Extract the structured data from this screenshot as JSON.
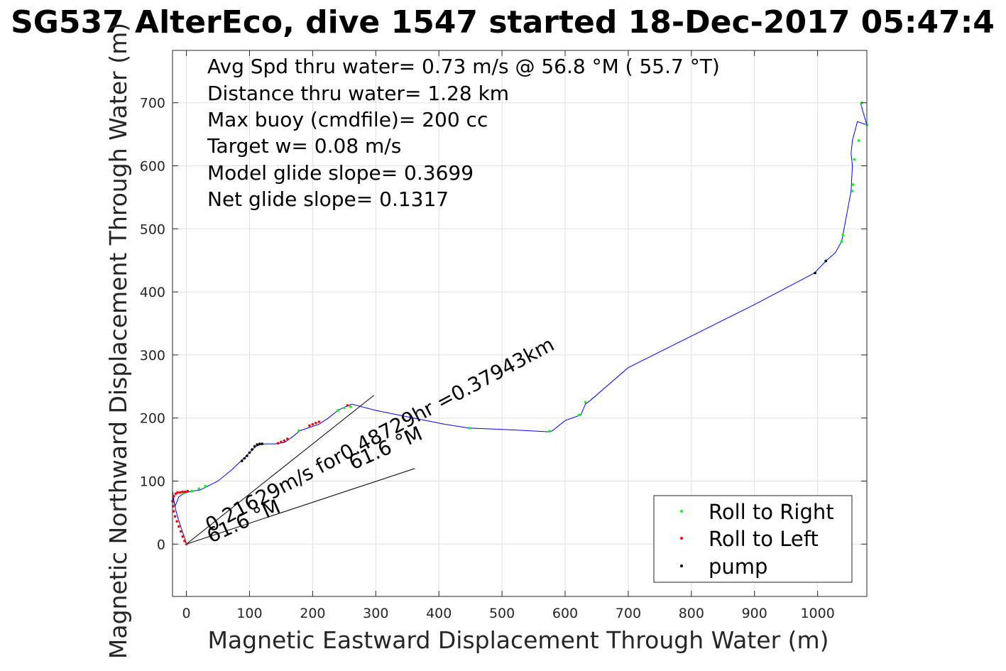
{
  "chart_data": {
    "type": "scatter",
    "title": "SG537 AlterEco, dive 1547 started 18-Dec-2017 05:47:4",
    "xlabel": "Magnetic Eastward Displacement Through Water (m)",
    "ylabel": "Magnetic Northward Displacement Through Water (m)",
    "xlim": [
      -22,
      1078
    ],
    "ylim": [
      -83,
      783
    ],
    "xticks": [
      "0",
      "100",
      "200",
      "300",
      "400",
      "500",
      "600",
      "700",
      "800",
      "900",
      "1000"
    ],
    "yticks": [
      "0",
      "100",
      "200",
      "300",
      "400",
      "500",
      "600",
      "700"
    ],
    "grid": true,
    "annotations": [
      "Avg Spd thru water=  0.73 m/s @  56.8 °M ( 55.7 °T)",
      "Distance thru water=  1.28 km",
      "Max buoy (cmdfile)= 200 cc",
      "Target w= 0.08 m/s",
      "Model glide slope= 0.3699",
      "Net glide slope= 0.1317"
    ],
    "rotated_labels": [
      {
        "text": "0.21629m/s for0.48729hr =0.37943km"
      },
      {
        "text": "61.6 °M"
      },
      {
        "text": "61.6 °M"
      }
    ],
    "reference_lines": [
      {
        "name": "bearing-line-upper",
        "x": [
          0,
          297
        ],
        "y": [
          0,
          236
        ]
      },
      {
        "name": "bearing-line-lower",
        "x": [
          0,
          362
        ],
        "y": [
          0,
          120
        ]
      }
    ],
    "track": {
      "color": "#0000ff",
      "x": [
        0,
        -3,
        -8,
        -13,
        -17,
        -20,
        -22,
        -21,
        -18,
        -12,
        -5,
        0,
        10,
        22,
        30,
        50,
        72,
        95,
        110,
        118,
        126,
        140,
        155,
        168,
        180,
        195,
        210,
        225,
        240,
        250,
        262,
        300,
        360,
        410,
        448,
        500,
        540,
        575,
        580,
        600,
        625,
        632,
        640,
        700,
        800,
        900,
        995,
        1013,
        1028,
        1038,
        1040,
        1053,
        1055,
        1053,
        1055,
        1063,
        1078,
        1072,
        1068
      ],
      "y": [
        0,
        10,
        25,
        40,
        55,
        70,
        85,
        70,
        60,
        75,
        80,
        82,
        84,
        86,
        90,
        100,
        118,
        140,
        155,
        158,
        159,
        159,
        161,
        170,
        180,
        185,
        190,
        200,
        212,
        217,
        222,
        212,
        200,
        190,
        184,
        182,
        180,
        178,
        180,
        196,
        205,
        222,
        228,
        280,
        330,
        380,
        430,
        449,
        462,
        480,
        490,
        560,
        600,
        620,
        640,
        670,
        665,
        685,
        700
      ]
    },
    "series": [
      {
        "name": "Roll to Right",
        "color": "#00ff00",
        "x": [
          -5,
          8,
          20,
          30,
          178,
          240,
          250,
          260,
          448,
          575,
          622,
          632,
          996,
          1013,
          1038,
          1040,
          1055,
          1056,
          1058,
          1065,
          1070,
          1078
        ],
        "y": [
          80,
          84,
          88,
          92,
          180,
          212,
          216,
          218,
          184,
          179,
          205,
          225,
          430,
          449,
          480,
          490,
          560,
          570,
          610,
          640,
          700,
          665
        ]
      },
      {
        "name": "Roll to Left",
        "color": "#ff0000",
        "x": [
          0,
          -3,
          -6,
          -9,
          -12,
          -15,
          -18,
          -20,
          -21,
          -22,
          -20,
          -17,
          -14,
          -10,
          -6,
          -2,
          2,
          145,
          150,
          155,
          160,
          195,
          200,
          205,
          210,
          255
        ],
        "y": [
          0,
          5,
          12,
          20,
          28,
          36,
          44,
          52,
          60,
          68,
          76,
          80,
          82,
          82,
          83,
          83,
          84,
          160,
          162,
          164,
          167,
          188,
          190,
          192,
          194,
          220
        ]
      },
      {
        "name": "pump",
        "color": "#000000",
        "x": [
          88,
          92,
          96,
          100,
          104,
          108,
          112,
          116,
          120,
          996,
          1013
        ],
        "y": [
          132,
          136,
          140,
          145,
          150,
          155,
          158,
          159,
          159,
          430,
          449
        ]
      }
    ],
    "legend": {
      "placement": "bottom-right",
      "entries": [
        "Roll to Right",
        "Roll to Left",
        "pump"
      ]
    }
  }
}
